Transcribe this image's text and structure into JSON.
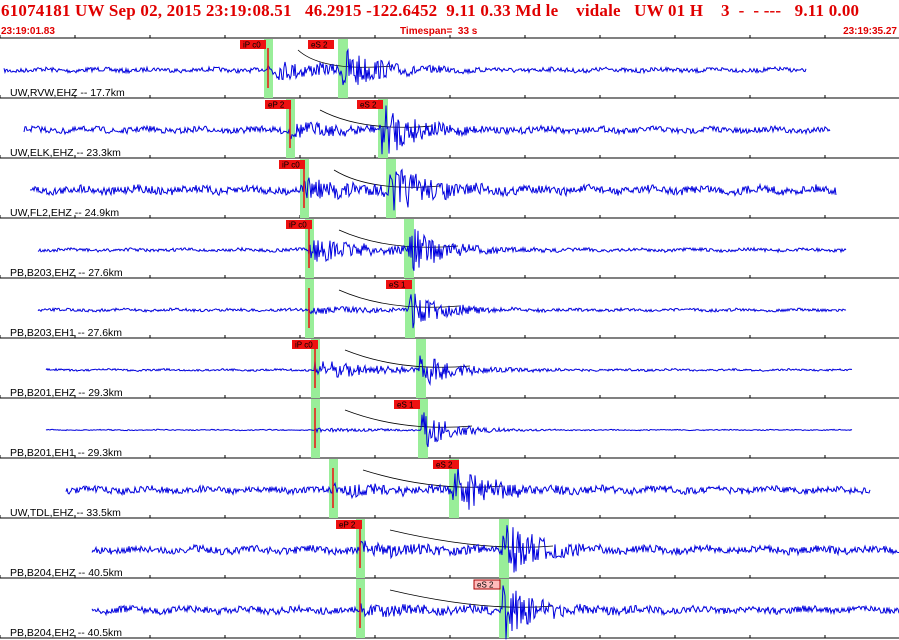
{
  "header": {
    "title": "61074181 UW Sep 02, 2015 23:19:08.51   46.2915 -122.6452  9.11 0.33 Md le    vidale   UW 01 H    3  -  - ---   9.11 0.00",
    "start_time": "23:19:01.83",
    "timespan": "Timespan=  33 s",
    "end_time": "23:19:35.27"
  },
  "colors": {
    "trace": "#0000dd",
    "pick_box": "#ee1111",
    "pick_box_light": "#ffbbbb",
    "window_band": "#99ee99",
    "header_text": "#e00000"
  },
  "channels": [
    {
      "label": "UW,RVW,EHZ -- 17.7km",
      "picks": [
        "iP c0",
        "eS 2"
      ]
    },
    {
      "label": "UW,ELK,EHZ -- 23.3km",
      "picks": [
        "eP 2",
        "eS 2"
      ]
    },
    {
      "label": "UW,FL2,EHZ -- 24.9km",
      "picks": [
        "iP c0"
      ]
    },
    {
      "label": "PB,B203,EHZ -- 27.6km",
      "picks": [
        "iP c0"
      ]
    },
    {
      "label": "PB,B203,EH1 -- 27.6km",
      "picks": [
        "eS 1"
      ]
    },
    {
      "label": "PB,B201,EHZ -- 29.3km",
      "picks": [
        "iP c0"
      ]
    },
    {
      "label": "PB,B201,EH1 -- 29.3km",
      "picks": [
        "eS 1"
      ]
    },
    {
      "label": "UW,TDL,EHZ -- 33.5km",
      "picks": [
        "eS 2"
      ]
    },
    {
      "label": "PB,B204,EHZ -- 40.5km",
      "picks": [
        "eP 2"
      ]
    },
    {
      "label": "PB,B204,EH2 -- 40.5km",
      "picks": [
        "eS 2"
      ]
    }
  ]
}
